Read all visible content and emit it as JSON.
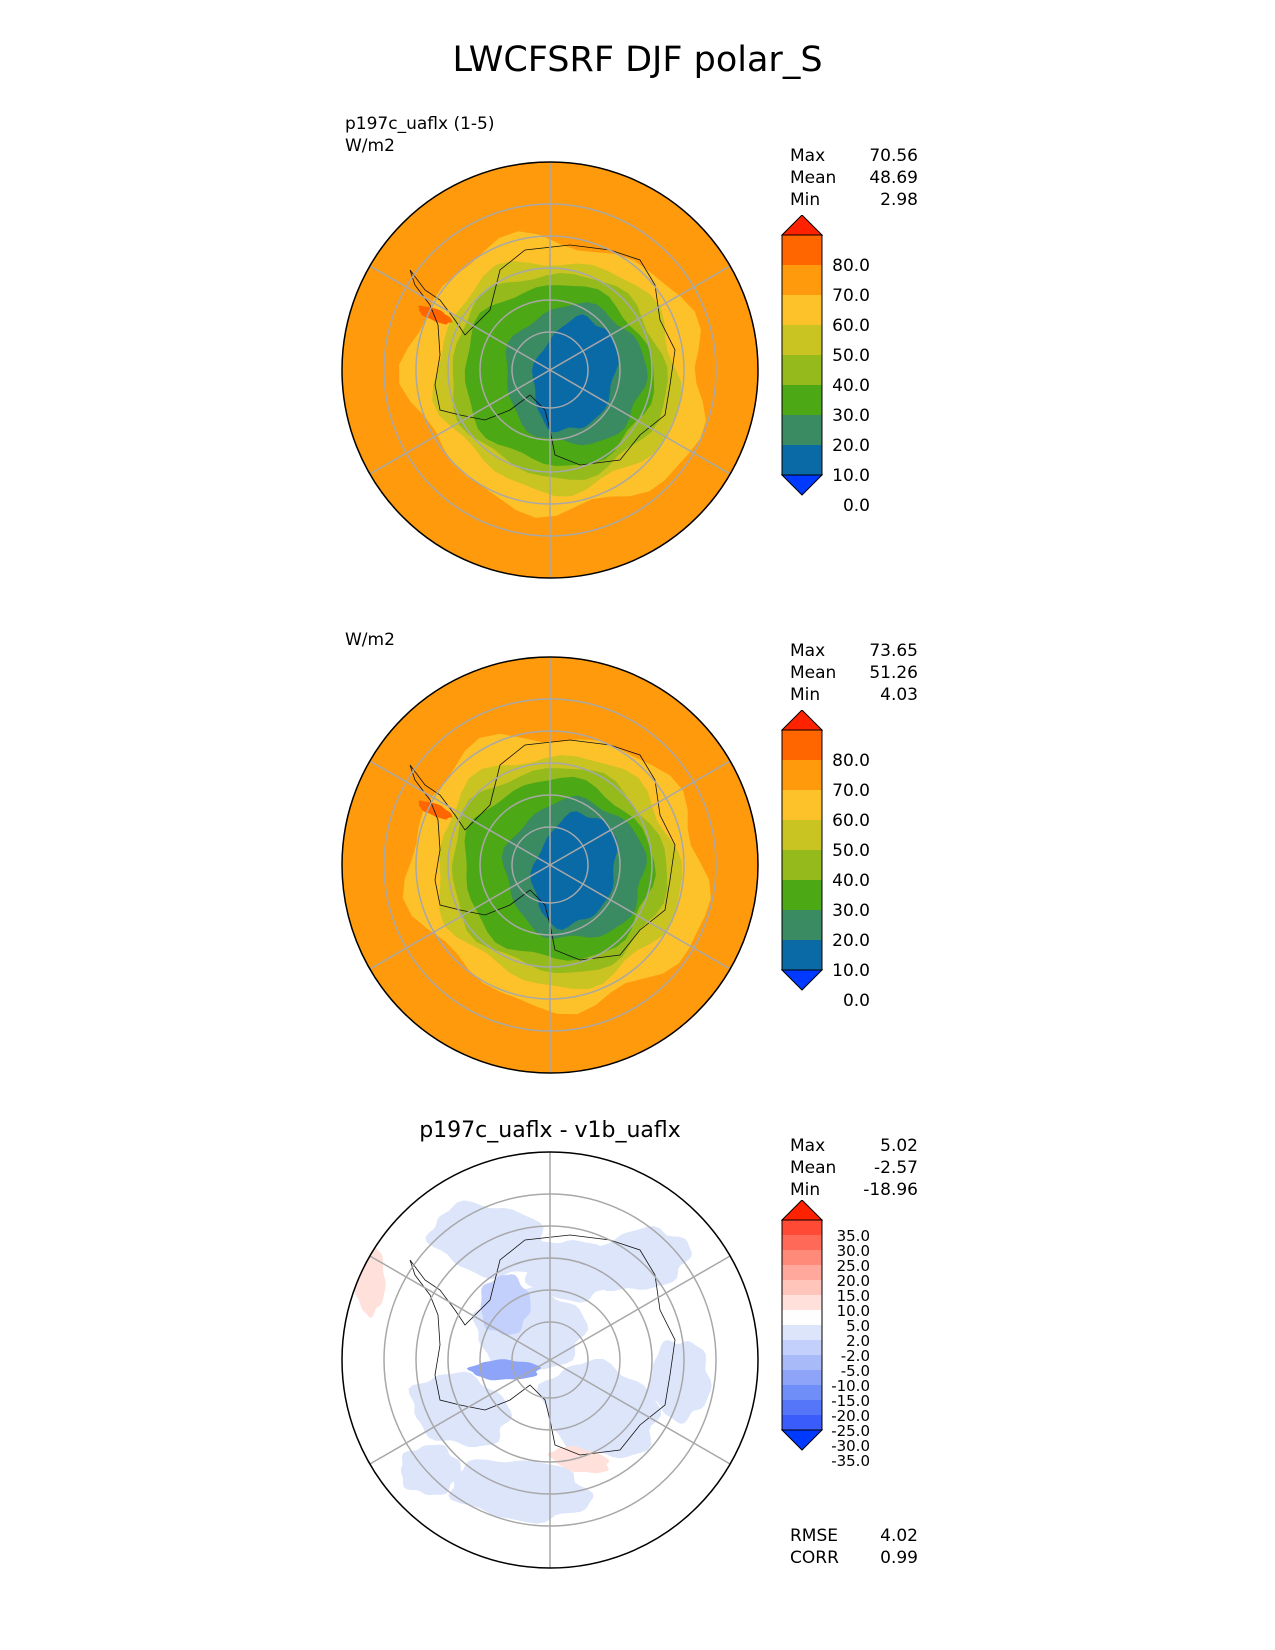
{
  "title": "LWCFSRF DJF polar_S",
  "panels": [
    {
      "left_title": "p197c_uaflx (1-5)",
      "units": "W/m2",
      "center_title": "",
      "stats": [
        {
          "label": "Max",
          "value": "70.56"
        },
        {
          "label": "Mean",
          "value": "48.69"
        },
        {
          "label": "Min",
          "value": "2.98"
        }
      ],
      "colorbar": {
        "ticks": [
          "80.0",
          "70.0",
          "60.0",
          "50.0",
          "40.0",
          "30.0",
          "20.0",
          "10.0",
          "0.0"
        ],
        "colors": [
          "#ff2200",
          "#ff6600",
          "#ff9a0c",
          "#fdc22a",
          "#cac423",
          "#94ba1c",
          "#4da816",
          "#3a8a62",
          "#0a6aa6",
          "#0039ff"
        ]
      }
    },
    {
      "left_title": "",
      "units": "W/m2",
      "center_title": "",
      "stats": [
        {
          "label": "Max",
          "value": "73.65"
        },
        {
          "label": "Mean",
          "value": "51.26"
        },
        {
          "label": "Min",
          "value": "4.03"
        }
      ],
      "colorbar": {
        "ticks": [
          "80.0",
          "70.0",
          "60.0",
          "50.0",
          "40.0",
          "30.0",
          "20.0",
          "10.0",
          "0.0"
        ],
        "colors": [
          "#ff2200",
          "#ff6600",
          "#ff9a0c",
          "#fdc22a",
          "#cac423",
          "#94ba1c",
          "#4da816",
          "#3a8a62",
          "#0a6aa6",
          "#0039ff"
        ]
      }
    },
    {
      "left_title": "",
      "units": "",
      "center_title": "p197c_uaflx - v1b_uaflx",
      "stats": [
        {
          "label": "Max",
          "value": "5.02"
        },
        {
          "label": "Mean",
          "value": "-2.57"
        },
        {
          "label": "Min",
          "value": "-18.96"
        }
      ],
      "extra_stats": [
        {
          "label": "RMSE",
          "value": "4.02"
        },
        {
          "label": "CORR",
          "value": "0.99"
        }
      ],
      "colorbar": {
        "ticks": [
          "35.0",
          "30.0",
          "25.0",
          "20.0",
          "15.0",
          "10.0",
          "5.0",
          "2.0",
          "-2.0",
          "-5.0",
          "-10.0",
          "-15.0",
          "-20.0",
          "-25.0",
          "-30.0",
          "-35.0"
        ],
        "colors": [
          "#ff2200",
          "#ff4a35",
          "#ff6a58",
          "#ff8a7a",
          "#ffa89b",
          "#ffc5bb",
          "#ffe0da",
          "#fefefe",
          "#dde5fb",
          "#c3d0fb",
          "#a9baf9",
          "#8da4f8",
          "#708ef8",
          "#5576f9",
          "#3a5cfb",
          "#0039ff"
        ]
      }
    }
  ],
  "chart_data": [
    {
      "type": "heatmap",
      "projection": "south polar stereographic",
      "field": "LWCFSRF",
      "season": "DJF",
      "case": "p197c_uaflx (1-5)",
      "units": "W/m2",
      "max": 70.56,
      "mean": 48.69,
      "min": 2.98,
      "contour_levels": [
        0,
        10,
        20,
        30,
        40,
        50,
        60,
        70,
        80
      ]
    },
    {
      "type": "heatmap",
      "projection": "south polar stereographic",
      "field": "LWCFSRF",
      "season": "DJF",
      "units": "W/m2",
      "max": 73.65,
      "mean": 51.26,
      "min": 4.03,
      "contour_levels": [
        0,
        10,
        20,
        30,
        40,
        50,
        60,
        70,
        80
      ]
    },
    {
      "type": "heatmap",
      "projection": "south polar stereographic",
      "title": "p197c_uaflx - v1b_uaflx",
      "max": 5.02,
      "mean": -2.57,
      "min": -18.96,
      "rmse": 4.02,
      "corr": 0.99,
      "contour_levels": [
        -35,
        -30,
        -25,
        -20,
        -15,
        -10,
        -5,
        -2,
        2,
        5,
        10,
        15,
        20,
        25,
        30,
        35
      ]
    }
  ]
}
